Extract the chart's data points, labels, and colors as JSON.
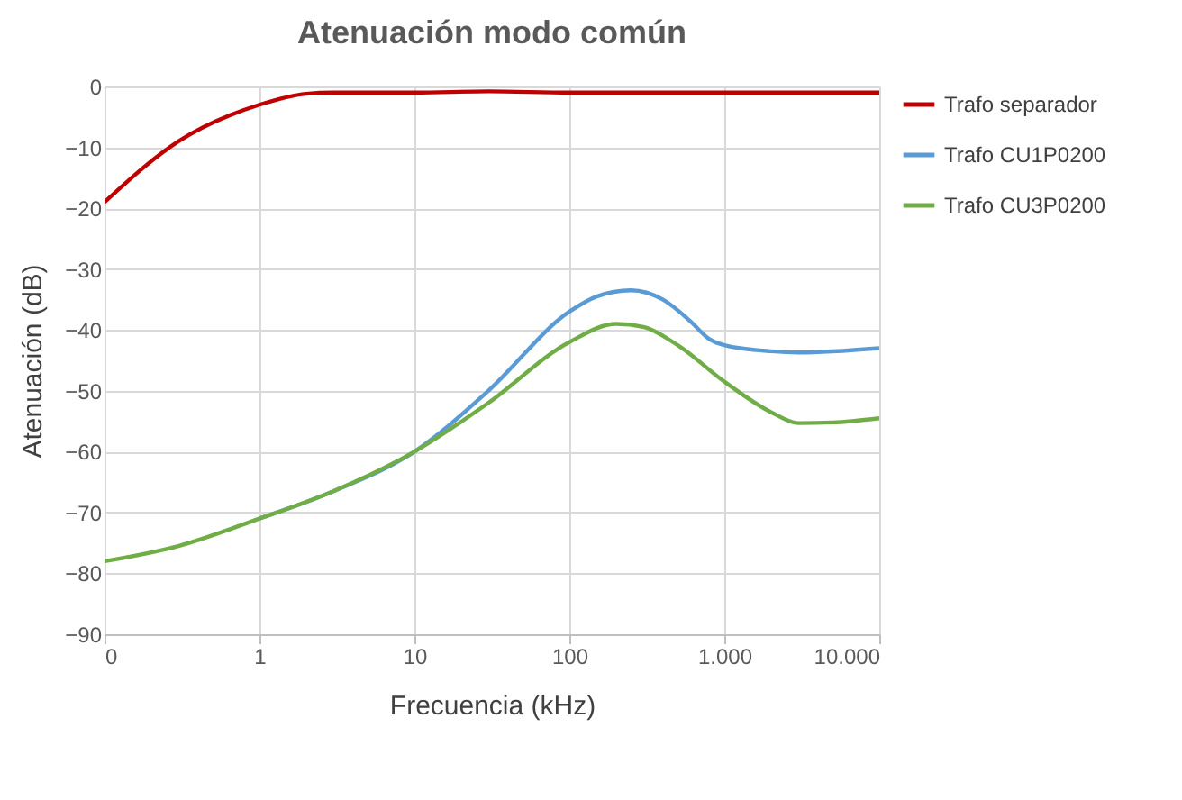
{
  "chart_data": {
    "type": "line",
    "title": "Atenuación  modo común",
    "xlabel": "Frecuencia (kHz)",
    "ylabel": "Atenuación (dB)",
    "log": "x",
    "xlim": [
      0.1,
      10000
    ],
    "xticks": [
      {
        "value": 0.1,
        "label": "0"
      },
      1,
      10,
      100,
      {
        "value": 1000,
        "label": "1.000"
      },
      {
        "value": 10000,
        "label": "10.000"
      }
    ],
    "ylim": [
      -90,
      0
    ],
    "yticks": [
      -90,
      -80,
      -70,
      -60,
      -50,
      -40,
      -30,
      -20,
      -10,
      0
    ],
    "grid": true,
    "legend": "right",
    "marker": "none",
    "line_style": "solid",
    "series": [
      {
        "name": "Trafo separador",
        "color": "#c00000",
        "x": [
          0.1,
          0.3,
          1,
          2,
          3,
          10,
          30,
          100,
          1000,
          10000
        ],
        "values": [
          -19,
          -9,
          -3,
          -1.2,
          -1,
          -1,
          -0.8,
          -1,
          -1,
          -1
        ]
      },
      {
        "name": "Trafo CU1P0200",
        "color": "#5b9bd5",
        "x": [
          1,
          3,
          10,
          30,
          100,
          150,
          250,
          400,
          600,
          800,
          1000,
          2000,
          3000,
          10000
        ],
        "values": [
          -71,
          -66.5,
          -60,
          -50,
          -37,
          -34.5,
          -33.5,
          -35,
          -38.5,
          -41.5,
          -42.5,
          -43.5,
          -43.7,
          -43
        ]
      },
      {
        "name": "Trafo CU3P0200",
        "color": "#70ad47",
        "x": [
          0.1,
          0.3,
          1,
          3,
          10,
          30,
          100,
          200,
          300,
          500,
          1000,
          2000,
          3000,
          5000,
          10000
        ],
        "values": [
          -78,
          -75.5,
          -71,
          -66.5,
          -60,
          -52,
          -42,
          -39,
          -39.5,
          -42.5,
          -48.5,
          -53.5,
          -55.3,
          -55.2,
          -54.5
        ]
      }
    ]
  }
}
